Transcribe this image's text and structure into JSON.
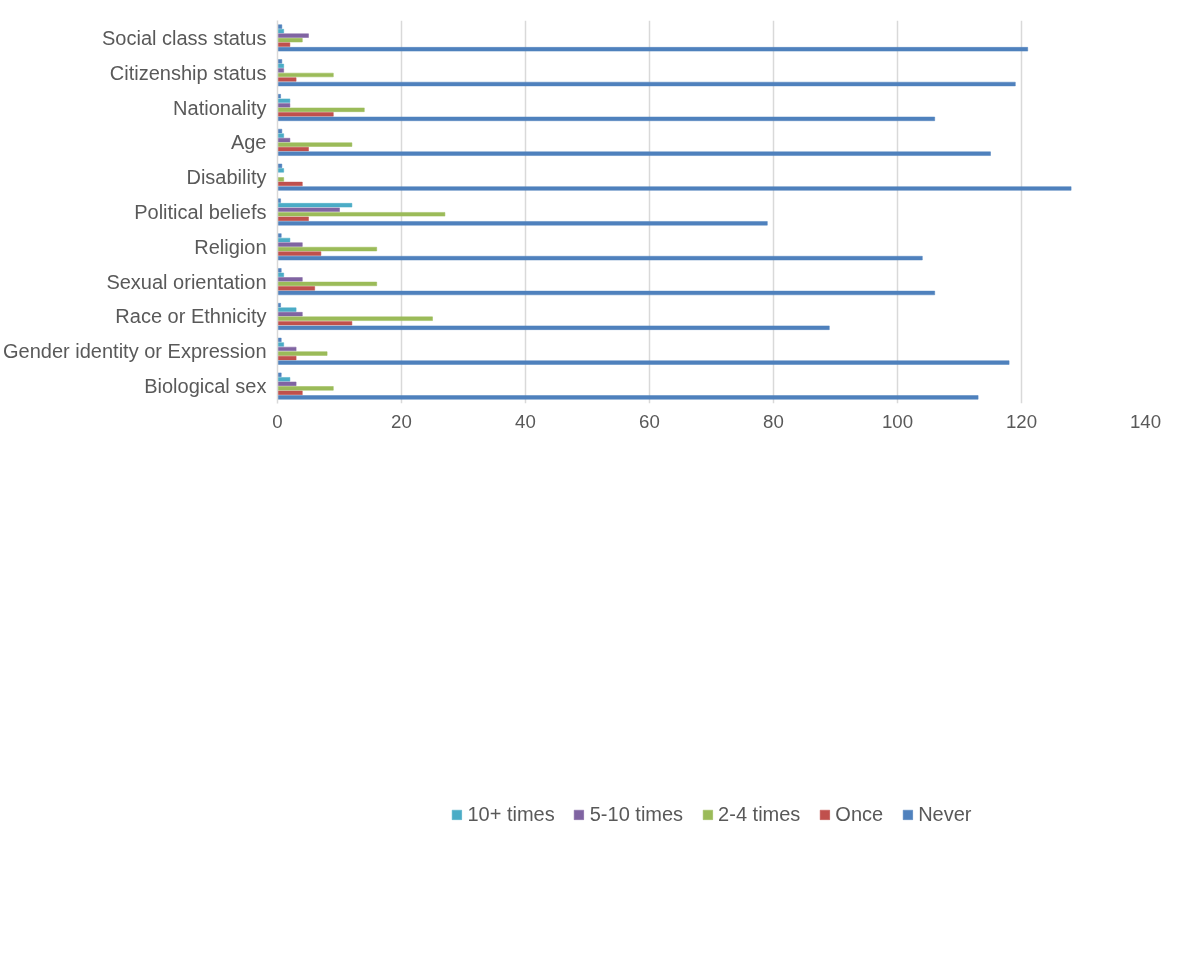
{
  "chart_data": {
    "type": "bar",
    "orientation": "horizontal",
    "categories": [
      "Social class status",
      "Citizenship status",
      "Nationality",
      "Age",
      "Disability",
      "Political beliefs",
      "Religion",
      "Sexual orientation",
      "Race or Ethnicity",
      "Gender identity or Expression",
      "Biological sex"
    ],
    "series": [
      {
        "color": "#4f81bd",
        "values": [
          0.7,
          0.7,
          0.5,
          0.7,
          0.7,
          0.5,
          0.6,
          0.6,
          0.5,
          0.6,
          0.6
        ]
      },
      {
        "name": "10+ times",
        "color": "#4bacc6",
        "values": [
          1,
          1,
          2,
          1,
          1,
          12,
          2,
          1,
          3,
          1,
          2
        ]
      },
      {
        "name": "5-10 times",
        "color": "#8064a2",
        "values": [
          5,
          1,
          2,
          2,
          0,
          10,
          4,
          4,
          4,
          3,
          3
        ]
      },
      {
        "name": "2-4 times",
        "color": "#9bbb59",
        "values": [
          4,
          9,
          14,
          12,
          1,
          27,
          16,
          16,
          25,
          8,
          9
        ]
      },
      {
        "name": "Once",
        "color": "#c0504d",
        "values": [
          2,
          3,
          9,
          5,
          4,
          5,
          7,
          6,
          12,
          3,
          4
        ]
      },
      {
        "name": "Never",
        "color": "#4f81bd",
        "values": [
          121,
          119,
          106,
          115,
          128,
          79,
          104,
          106,
          89,
          118,
          113
        ]
      }
    ],
    "xlim": [
      0,
      140
    ],
    "xticks": [
      0,
      20,
      40,
      60,
      80,
      100,
      120,
      140
    ],
    "grid": "x",
    "legend": "bottom"
  }
}
